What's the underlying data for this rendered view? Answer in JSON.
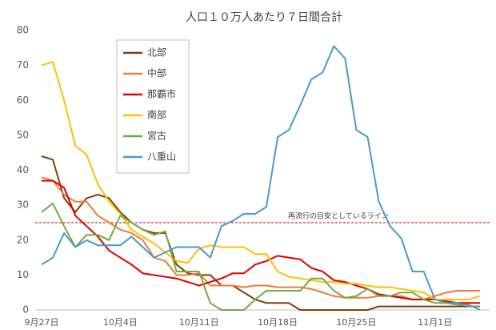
{
  "chart_data": {
    "type": "line",
    "title": "人口１０万人あたり７日間合計",
    "categories": [
      "9月27日",
      null,
      null,
      null,
      null,
      null,
      null,
      "10月4日",
      null,
      null,
      null,
      null,
      null,
      null,
      "10月11日",
      null,
      null,
      null,
      null,
      null,
      null,
      "10月18日",
      null,
      null,
      null,
      null,
      null,
      null,
      "10月25日",
      null,
      null,
      null,
      null,
      null,
      null,
      "11月1日",
      null,
      null,
      null,
      null
    ],
    "series": [
      {
        "name": "北部",
        "color": "#843c0c",
        "values": [
          44,
          43,
          32,
          28,
          32,
          33,
          32,
          28,
          25,
          23,
          22,
          22,
          13,
          10.5,
          10,
          10,
          7,
          7,
          5,
          3,
          2,
          2,
          2,
          0,
          0,
          0,
          0,
          0,
          0,
          0,
          1,
          1,
          1,
          1,
          1,
          1,
          1,
          1,
          1,
          1
        ]
      },
      {
        "name": "中部",
        "color": "#ed7d31",
        "values": [
          38,
          37,
          33,
          31,
          31,
          27,
          25,
          23,
          22,
          20,
          15,
          14,
          10,
          10,
          10.5,
          7,
          7,
          7,
          6.5,
          7,
          7,
          6.5,
          6.5,
          6.5,
          6,
          5,
          4,
          3.5,
          3.5,
          3.5,
          4,
          4,
          4,
          3,
          3,
          4,
          5,
          5.5,
          5.5,
          5.5
        ]
      },
      {
        "name": "那覇市",
        "color": "#e00000",
        "values": [
          37,
          37,
          35,
          27,
          24,
          21,
          17,
          15,
          13,
          10.5,
          10,
          9.5,
          9,
          8,
          7,
          8,
          9,
          10.5,
          10.5,
          13,
          14,
          15.5,
          15,
          14.5,
          12,
          11,
          8.5,
          8,
          7,
          6,
          4.5,
          4,
          3.5,
          3,
          3,
          3,
          2.5,
          2,
          2,
          2
        ]
      },
      {
        "name": "南部",
        "color": "#ffc000",
        "values": [
          70,
          71,
          60,
          47,
          44.5,
          36,
          31,
          27.5,
          23,
          21,
          19,
          16.5,
          14,
          13.5,
          17.5,
          18.5,
          18,
          18,
          18,
          16,
          16,
          11,
          9.5,
          9,
          8.5,
          8,
          8,
          7.5,
          7.5,
          7,
          6.5,
          6.5,
          6,
          5.5,
          5,
          3,
          3,
          3,
          3,
          4
        ]
      },
      {
        "name": "宮古",
        "color": "#70ad47",
        "values": [
          28,
          30.5,
          24,
          18,
          21.5,
          21.5,
          20,
          27,
          25,
          23,
          21.5,
          22.5,
          11,
          11,
          11,
          2,
          0,
          0,
          0,
          3,
          5.5,
          5.5,
          5.5,
          5.5,
          9,
          9,
          5.5,
          3.5,
          4,
          6,
          4,
          4,
          5,
          5,
          3,
          2,
          2,
          1.5,
          1.5,
          0
        ]
      },
      {
        "name": "八重山",
        "color": "#4a9bc8",
        "values": [
          13,
          15,
          22,
          18,
          20,
          18.5,
          18.5,
          18.5,
          21,
          18,
          15,
          16.5,
          18,
          18,
          18,
          15,
          24,
          25.5,
          27.5,
          27.5,
          29.5,
          49.5,
          51.5,
          58.5,
          66,
          68,
          75.5,
          72,
          51.5,
          49.5,
          31,
          24,
          20.5,
          11,
          11,
          3,
          2,
          2,
          1,
          1
        ]
      }
    ],
    "reference_line": {
      "value": 25,
      "label": "再流行の目安としているライン",
      "color": "#c00000"
    },
    "ylim": [
      0,
      80
    ],
    "yticks": [
      0,
      10,
      20,
      30,
      40,
      50,
      60,
      70,
      80
    ],
    "grid": false
  }
}
